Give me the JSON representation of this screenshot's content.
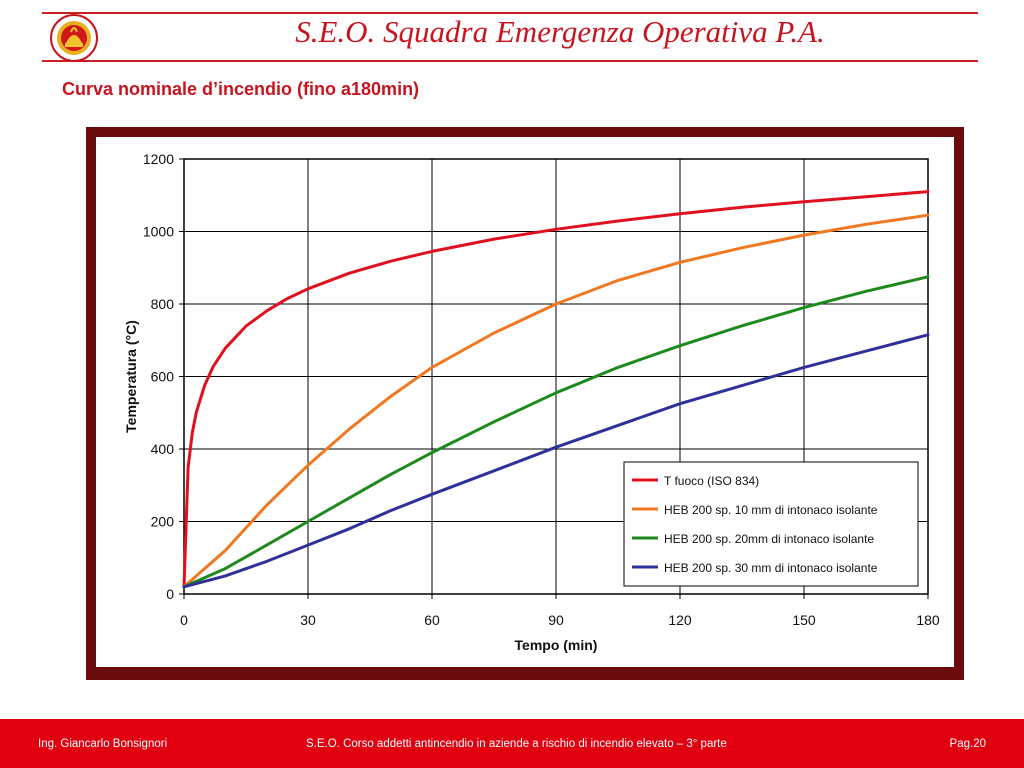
{
  "header": {
    "title": "S.E.O. Squadra Emergenza Operativa P.A.",
    "subtitle": "Curva nominale d’incendio  (fino a180min)",
    "logo_icon": "fire-brigade-emblem-icon"
  },
  "colors": {
    "accent": "#c8141e",
    "frame": "#6b0b0b",
    "footer": "#e00010"
  },
  "chart_data": {
    "type": "line",
    "title": "",
    "xlabel": "Tempo (min)",
    "ylabel": "Temperatura (°C)",
    "xlim": [
      0,
      180
    ],
    "ylim": [
      0,
      1200
    ],
    "xticks": [
      0,
      30,
      60,
      90,
      120,
      150,
      180
    ],
    "yticks": [
      0,
      200,
      400,
      600,
      800,
      1000,
      1200
    ],
    "grid": true,
    "legend_position": "bottom-right",
    "series": [
      {
        "name": "T fuoco (ISO 834)",
        "color": "#e01020",
        "x": [
          0,
          1,
          2,
          3,
          5,
          7,
          10,
          15,
          20,
          25,
          30,
          40,
          50,
          60,
          75,
          90,
          105,
          120,
          135,
          150,
          165,
          180
        ],
        "y": [
          20,
          349,
          445,
          502,
          576,
          626,
          678,
          739,
          781,
          815,
          842,
          885,
          918,
          945,
          979,
          1006,
          1029,
          1049,
          1067,
          1082,
          1096,
          1110
        ]
      },
      {
        "name": "HEB 200 sp. 10 mm di intonaco isolante",
        "color": "#f07820",
        "x": [
          0,
          10,
          20,
          30,
          40,
          50,
          60,
          75,
          90,
          105,
          120,
          135,
          150,
          165,
          180
        ],
        "y": [
          20,
          120,
          245,
          355,
          455,
          545,
          625,
          720,
          800,
          865,
          915,
          955,
          990,
          1020,
          1045
        ]
      },
      {
        "name": "HEB 200 sp. 20mm di intonaco isolante",
        "color": "#1e8a1e",
        "x": [
          0,
          10,
          20,
          30,
          40,
          50,
          60,
          75,
          90,
          105,
          120,
          135,
          150,
          165,
          180
        ],
        "y": [
          20,
          70,
          135,
          200,
          265,
          330,
          390,
          475,
          555,
          625,
          685,
          740,
          790,
          835,
          875
        ]
      },
      {
        "name": "HEB 200 sp. 30 mm di intonaco isolante",
        "color": "#30309a",
        "x": [
          0,
          10,
          20,
          30,
          40,
          50,
          60,
          75,
          90,
          105,
          120,
          135,
          150,
          165,
          180
        ],
        "y": [
          20,
          50,
          90,
          135,
          180,
          230,
          275,
          340,
          405,
          465,
          525,
          575,
          625,
          670,
          715
        ]
      }
    ]
  },
  "footer": {
    "author": "Ing. Giancarlo Bonsignori",
    "course": "S.E.O.  Corso addetti antincendio in aziende a rischio di incendio  elevato – 3° parte",
    "page": "Pag.20"
  }
}
